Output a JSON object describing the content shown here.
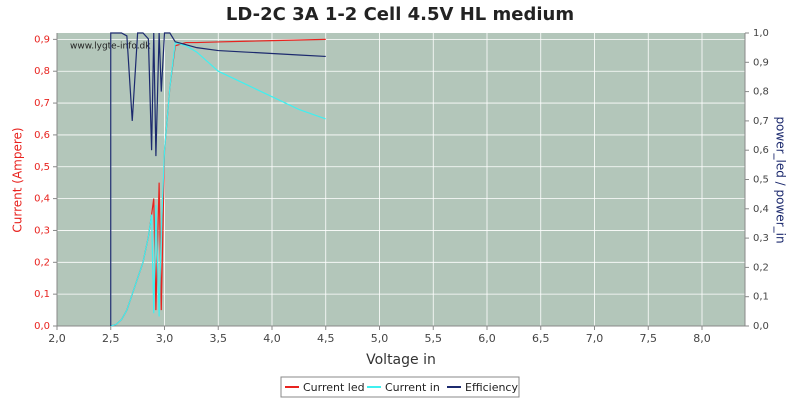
{
  "chart_data": {
    "type": "line",
    "title": "LD-2C 3A 1-2 Cell 4.5V HL medium",
    "watermark": "www.lygte-info.dk",
    "xlabel": "Voltage in",
    "ylabel": "Current (Ampere)",
    "y2label": "power_led / power_in",
    "x": [
      2.5,
      2.5,
      2.55,
      2.6,
      2.65,
      2.7,
      2.75,
      2.8,
      2.85,
      2.88,
      2.9,
      2.92,
      2.95,
      2.97,
      3.0,
      3.05,
      3.1,
      3.2,
      3.3,
      3.5,
      3.75,
      4.0,
      4.25,
      4.5
    ],
    "series": [
      {
        "name": "Current led",
        "color": "#e8231f",
        "values": [
          0,
          0,
          0.005,
          0.02,
          0.05,
          0.1,
          0.15,
          0.2,
          0.28,
          0.35,
          0.4,
          0.05,
          0.45,
          0.05,
          0.55,
          0.75,
          0.88,
          0.89,
          0.89,
          0.892,
          0.894,
          0.896,
          0.898,
          0.9
        ]
      },
      {
        "name": "Current in",
        "color": "#3ff0f0",
        "values": [
          0,
          0,
          0.005,
          0.02,
          0.05,
          0.1,
          0.15,
          0.2,
          0.28,
          0.35,
          0.04,
          0.38,
          0.03,
          0.3,
          0.55,
          0.75,
          0.89,
          0.88,
          0.86,
          0.8,
          0.76,
          0.72,
          0.68,
          0.65
        ]
      },
      {
        "name": "Efficiency",
        "color": "#1c2a6e",
        "axis": "y2",
        "values": [
          0,
          1.0,
          1.0,
          1.0,
          0.99,
          0.7,
          1.0,
          1.0,
          0.98,
          0.6,
          1.0,
          0.58,
          1.0,
          0.8,
          1.0,
          1.0,
          0.97,
          0.96,
          0.95,
          0.94,
          0.935,
          0.93,
          0.925,
          0.92
        ]
      }
    ],
    "xlim": [
      2.0,
      8.4
    ],
    "xticks": [
      {
        "value": 2.0,
        "label": "2,0"
      },
      {
        "value": 2.5,
        "label": "2,5"
      },
      {
        "value": 3.0,
        "label": "3,0"
      },
      {
        "value": 3.5,
        "label": "3,5"
      },
      {
        "value": 4.0,
        "label": "4,0"
      },
      {
        "value": 4.5,
        "label": "4,5"
      },
      {
        "value": 5.0,
        "label": "5,0"
      },
      {
        "value": 5.5,
        "label": "5,5"
      },
      {
        "value": 6.0,
        "label": "6,0"
      },
      {
        "value": 6.5,
        "label": "6,5"
      },
      {
        "value": 7.0,
        "label": "7,0"
      },
      {
        "value": 7.5,
        "label": "7,5"
      },
      {
        "value": 8.0,
        "label": "8,0"
      }
    ],
    "ylim": [
      0,
      0.92
    ],
    "yticks": [
      {
        "value": 0,
        "label": "0,0"
      },
      {
        "value": 0.1,
        "label": "0,1"
      },
      {
        "value": 0.2,
        "label": "0,2"
      },
      {
        "value": 0.3,
        "label": "0,3"
      },
      {
        "value": 0.4,
        "label": "0,4"
      },
      {
        "value": 0.5,
        "label": "0,5"
      },
      {
        "value": 0.6,
        "label": "0,6"
      },
      {
        "value": 0.7,
        "label": "0,7"
      },
      {
        "value": 0.8,
        "label": "0,8"
      },
      {
        "value": 0.9,
        "label": "0,9"
      }
    ],
    "y2lim": [
      0,
      1.0
    ],
    "y2ticks": [
      {
        "value": 0,
        "label": "0,0"
      },
      {
        "value": 0.1,
        "label": "0,1"
      },
      {
        "value": 0.2,
        "label": "0,2"
      },
      {
        "value": 0.3,
        "label": "0,3"
      },
      {
        "value": 0.4,
        "label": "0,4"
      },
      {
        "value": 0.5,
        "label": "0,5"
      },
      {
        "value": 0.6,
        "label": "0,6"
      },
      {
        "value": 0.7,
        "label": "0,7"
      },
      {
        "value": 0.8,
        "label": "0,8"
      },
      {
        "value": 0.9,
        "label": "0,9"
      },
      {
        "value": 1.0,
        "label": "1,0"
      }
    ],
    "grid": true,
    "legend": "bottom"
  }
}
